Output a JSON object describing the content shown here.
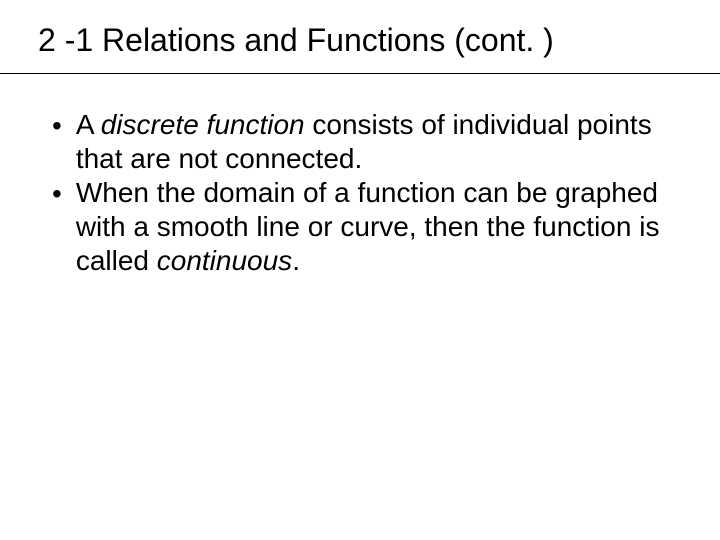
{
  "slide": {
    "title": "2 -1 Relations and Functions (cont. )",
    "bullets": [
      {
        "pre": "A ",
        "italic": "discrete function",
        "post": " consists of individual points that are not connected."
      },
      {
        "pre": "When the domain of a function can be graphed with a smooth line or curve, then the function is called ",
        "italic": "continuous",
        "post": "."
      }
    ]
  },
  "styling": {
    "background_color": "#ffffff",
    "text_color": "#000000",
    "title_fontsize": 32,
    "body_fontsize": 28,
    "divider_color": "#000000",
    "font_family": "Arial"
  }
}
